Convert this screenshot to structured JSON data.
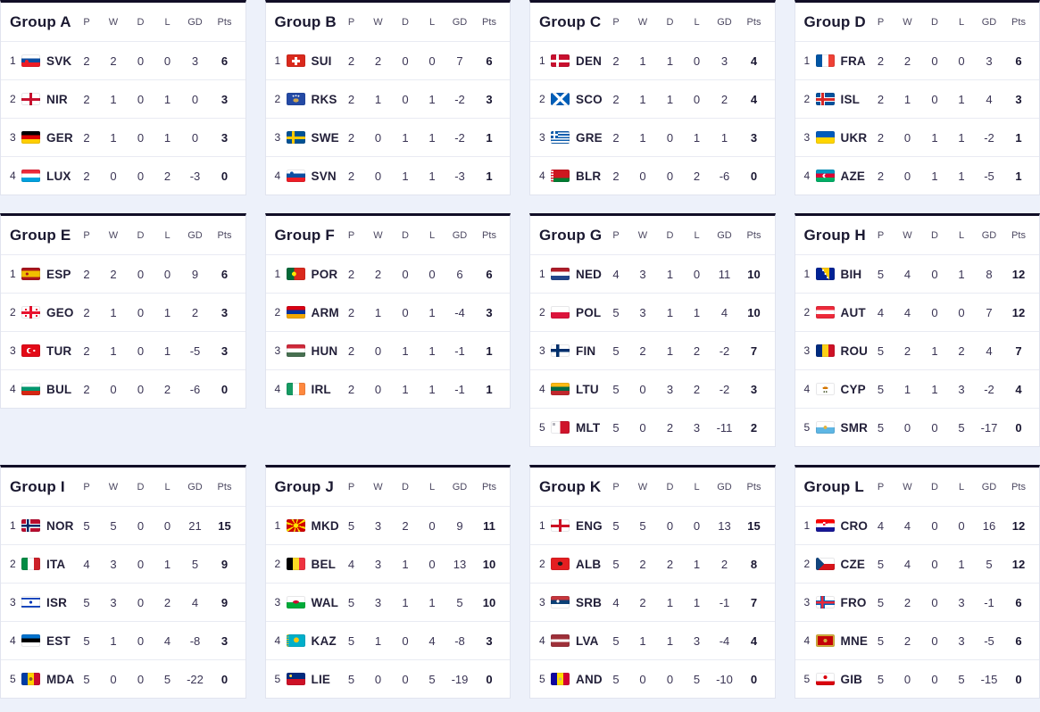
{
  "columns": [
    "P",
    "W",
    "D",
    "L",
    "GD",
    "Pts"
  ],
  "colors": {
    "page_bg": "#edf1fa",
    "card_bg": "#ffffff",
    "card_top_border": "#110e26",
    "card_border": "#e1e4ef",
    "divider": "#e9ebf3",
    "heading_text": "#1a1830",
    "column_header_text": "#4c4861",
    "stat_text": "#3a3454",
    "points_text": "#191631"
  },
  "groups": [
    {
      "title": "Group A",
      "rows": [
        {
          "rank": 1,
          "code": "SVK",
          "flag": "flag-svk-icon",
          "p": 2,
          "w": 2,
          "d": 0,
          "l": 0,
          "gd": 3,
          "pts": 6
        },
        {
          "rank": 2,
          "code": "NIR",
          "flag": "flag-nir-icon",
          "p": 2,
          "w": 1,
          "d": 0,
          "l": 1,
          "gd": 0,
          "pts": 3
        },
        {
          "rank": 3,
          "code": "GER",
          "flag": "flag-ger-icon",
          "p": 2,
          "w": 1,
          "d": 0,
          "l": 1,
          "gd": 0,
          "pts": 3
        },
        {
          "rank": 4,
          "code": "LUX",
          "flag": "flag-lux-icon",
          "p": 2,
          "w": 0,
          "d": 0,
          "l": 2,
          "gd": -3,
          "pts": 0
        }
      ]
    },
    {
      "title": "Group B",
      "rows": [
        {
          "rank": 1,
          "code": "SUI",
          "flag": "flag-sui-icon",
          "p": 2,
          "w": 2,
          "d": 0,
          "l": 0,
          "gd": 7,
          "pts": 6
        },
        {
          "rank": 2,
          "code": "RKS",
          "flag": "flag-rks-icon",
          "p": 2,
          "w": 1,
          "d": 0,
          "l": 1,
          "gd": -2,
          "pts": 3
        },
        {
          "rank": 3,
          "code": "SWE",
          "flag": "flag-swe-icon",
          "p": 2,
          "w": 0,
          "d": 1,
          "l": 1,
          "gd": -2,
          "pts": 1
        },
        {
          "rank": 4,
          "code": "SVN",
          "flag": "flag-svn-icon",
          "p": 2,
          "w": 0,
          "d": 1,
          "l": 1,
          "gd": -3,
          "pts": 1
        }
      ]
    },
    {
      "title": "Group C",
      "rows": [
        {
          "rank": 1,
          "code": "DEN",
          "flag": "flag-den-icon",
          "p": 2,
          "w": 1,
          "d": 1,
          "l": 0,
          "gd": 3,
          "pts": 4
        },
        {
          "rank": 2,
          "code": "SCO",
          "flag": "flag-sco-icon",
          "p": 2,
          "w": 1,
          "d": 1,
          "l": 0,
          "gd": 2,
          "pts": 4
        },
        {
          "rank": 3,
          "code": "GRE",
          "flag": "flag-gre-icon",
          "p": 2,
          "w": 1,
          "d": 0,
          "l": 1,
          "gd": 1,
          "pts": 3
        },
        {
          "rank": 4,
          "code": "BLR",
          "flag": "flag-blr-icon",
          "p": 2,
          "w": 0,
          "d": 0,
          "l": 2,
          "gd": -6,
          "pts": 0
        }
      ]
    },
    {
      "title": "Group D",
      "rows": [
        {
          "rank": 1,
          "code": "FRA",
          "flag": "flag-fra-icon",
          "p": 2,
          "w": 2,
          "d": 0,
          "l": 0,
          "gd": 3,
          "pts": 6
        },
        {
          "rank": 2,
          "code": "ISL",
          "flag": "flag-isl-icon",
          "p": 2,
          "w": 1,
          "d": 0,
          "l": 1,
          "gd": 4,
          "pts": 3
        },
        {
          "rank": 3,
          "code": "UKR",
          "flag": "flag-ukr-icon",
          "p": 2,
          "w": 0,
          "d": 1,
          "l": 1,
          "gd": -2,
          "pts": 1
        },
        {
          "rank": 4,
          "code": "AZE",
          "flag": "flag-aze-icon",
          "p": 2,
          "w": 0,
          "d": 1,
          "l": 1,
          "gd": -5,
          "pts": 1
        }
      ]
    },
    {
      "title": "Group E",
      "rows": [
        {
          "rank": 1,
          "code": "ESP",
          "flag": "flag-esp-icon",
          "p": 2,
          "w": 2,
          "d": 0,
          "l": 0,
          "gd": 9,
          "pts": 6
        },
        {
          "rank": 2,
          "code": "GEO",
          "flag": "flag-geo-icon",
          "p": 2,
          "w": 1,
          "d": 0,
          "l": 1,
          "gd": 2,
          "pts": 3
        },
        {
          "rank": 3,
          "code": "TUR",
          "flag": "flag-tur-icon",
          "p": 2,
          "w": 1,
          "d": 0,
          "l": 1,
          "gd": -5,
          "pts": 3
        },
        {
          "rank": 4,
          "code": "BUL",
          "flag": "flag-bul-icon",
          "p": 2,
          "w": 0,
          "d": 0,
          "l": 2,
          "gd": -6,
          "pts": 0
        }
      ]
    },
    {
      "title": "Group F",
      "rows": [
        {
          "rank": 1,
          "code": "POR",
          "flag": "flag-por-icon",
          "p": 2,
          "w": 2,
          "d": 0,
          "l": 0,
          "gd": 6,
          "pts": 6
        },
        {
          "rank": 2,
          "code": "ARM",
          "flag": "flag-arm-icon",
          "p": 2,
          "w": 1,
          "d": 0,
          "l": 1,
          "gd": -4,
          "pts": 3
        },
        {
          "rank": 3,
          "code": "HUN",
          "flag": "flag-hun-icon",
          "p": 2,
          "w": 0,
          "d": 1,
          "l": 1,
          "gd": -1,
          "pts": 1
        },
        {
          "rank": 4,
          "code": "IRL",
          "flag": "flag-irl-icon",
          "p": 2,
          "w": 0,
          "d": 1,
          "l": 1,
          "gd": -1,
          "pts": 1
        }
      ]
    },
    {
      "title": "Group G",
      "rows": [
        {
          "rank": 1,
          "code": "NED",
          "flag": "flag-ned-icon",
          "p": 4,
          "w": 3,
          "d": 1,
          "l": 0,
          "gd": 11,
          "pts": 10
        },
        {
          "rank": 2,
          "code": "POL",
          "flag": "flag-pol-icon",
          "p": 5,
          "w": 3,
          "d": 1,
          "l": 1,
          "gd": 4,
          "pts": 10
        },
        {
          "rank": 3,
          "code": "FIN",
          "flag": "flag-fin-icon",
          "p": 5,
          "w": 2,
          "d": 1,
          "l": 2,
          "gd": -2,
          "pts": 7
        },
        {
          "rank": 4,
          "code": "LTU",
          "flag": "flag-ltu-icon",
          "p": 5,
          "w": 0,
          "d": 3,
          "l": 2,
          "gd": -2,
          "pts": 3
        },
        {
          "rank": 5,
          "code": "MLT",
          "flag": "flag-mlt-icon",
          "p": 5,
          "w": 0,
          "d": 2,
          "l": 3,
          "gd": -11,
          "pts": 2
        }
      ]
    },
    {
      "title": "Group H",
      "rows": [
        {
          "rank": 1,
          "code": "BIH",
          "flag": "flag-bih-icon",
          "p": 5,
          "w": 4,
          "d": 0,
          "l": 1,
          "gd": 8,
          "pts": 12
        },
        {
          "rank": 2,
          "code": "AUT",
          "flag": "flag-aut-icon",
          "p": 4,
          "w": 4,
          "d": 0,
          "l": 0,
          "gd": 7,
          "pts": 12
        },
        {
          "rank": 3,
          "code": "ROU",
          "flag": "flag-rou-icon",
          "p": 5,
          "w": 2,
          "d": 1,
          "l": 2,
          "gd": 4,
          "pts": 7
        },
        {
          "rank": 4,
          "code": "CYP",
          "flag": "flag-cyp-icon",
          "p": 5,
          "w": 1,
          "d": 1,
          "l": 3,
          "gd": -2,
          "pts": 4
        },
        {
          "rank": 5,
          "code": "SMR",
          "flag": "flag-smr-icon",
          "p": 5,
          "w": 0,
          "d": 0,
          "l": 5,
          "gd": -17,
          "pts": 0
        }
      ]
    },
    {
      "title": "Group I",
      "rows": [
        {
          "rank": 1,
          "code": "NOR",
          "flag": "flag-nor-icon",
          "p": 5,
          "w": 5,
          "d": 0,
          "l": 0,
          "gd": 21,
          "pts": 15
        },
        {
          "rank": 2,
          "code": "ITA",
          "flag": "flag-ita-icon",
          "p": 4,
          "w": 3,
          "d": 0,
          "l": 1,
          "gd": 5,
          "pts": 9
        },
        {
          "rank": 3,
          "code": "ISR",
          "flag": "flag-isr-icon",
          "p": 5,
          "w": 3,
          "d": 0,
          "l": 2,
          "gd": 4,
          "pts": 9
        },
        {
          "rank": 4,
          "code": "EST",
          "flag": "flag-est-icon",
          "p": 5,
          "w": 1,
          "d": 0,
          "l": 4,
          "gd": -8,
          "pts": 3
        },
        {
          "rank": 5,
          "code": "MDA",
          "flag": "flag-mda-icon",
          "p": 5,
          "w": 0,
          "d": 0,
          "l": 5,
          "gd": -22,
          "pts": 0
        }
      ]
    },
    {
      "title": "Group J",
      "rows": [
        {
          "rank": 1,
          "code": "MKD",
          "flag": "flag-mkd-icon",
          "p": 5,
          "w": 3,
          "d": 2,
          "l": 0,
          "gd": 9,
          "pts": 11
        },
        {
          "rank": 2,
          "code": "BEL",
          "flag": "flag-bel-icon",
          "p": 4,
          "w": 3,
          "d": 1,
          "l": 0,
          "gd": 13,
          "pts": 10
        },
        {
          "rank": 3,
          "code": "WAL",
          "flag": "flag-wal-icon",
          "p": 5,
          "w": 3,
          "d": 1,
          "l": 1,
          "gd": 5,
          "pts": 10
        },
        {
          "rank": 4,
          "code": "KAZ",
          "flag": "flag-kaz-icon",
          "p": 5,
          "w": 1,
          "d": 0,
          "l": 4,
          "gd": -8,
          "pts": 3
        },
        {
          "rank": 5,
          "code": "LIE",
          "flag": "flag-lie-icon",
          "p": 5,
          "w": 0,
          "d": 0,
          "l": 5,
          "gd": -19,
          "pts": 0
        }
      ]
    },
    {
      "title": "Group K",
      "rows": [
        {
          "rank": 1,
          "code": "ENG",
          "flag": "flag-eng-icon",
          "p": 5,
          "w": 5,
          "d": 0,
          "l": 0,
          "gd": 13,
          "pts": 15
        },
        {
          "rank": 2,
          "code": "ALB",
          "flag": "flag-alb-icon",
          "p": 5,
          "w": 2,
          "d": 2,
          "l": 1,
          "gd": 2,
          "pts": 8
        },
        {
          "rank": 3,
          "code": "SRB",
          "flag": "flag-srb-icon",
          "p": 4,
          "w": 2,
          "d": 1,
          "l": 1,
          "gd": -1,
          "pts": 7
        },
        {
          "rank": 4,
          "code": "LVA",
          "flag": "flag-lva-icon",
          "p": 5,
          "w": 1,
          "d": 1,
          "l": 3,
          "gd": -4,
          "pts": 4
        },
        {
          "rank": 5,
          "code": "AND",
          "flag": "flag-and-icon",
          "p": 5,
          "w": 0,
          "d": 0,
          "l": 5,
          "gd": -10,
          "pts": 0
        }
      ]
    },
    {
      "title": "Group L",
      "rows": [
        {
          "rank": 1,
          "code": "CRO",
          "flag": "flag-cro-icon",
          "p": 4,
          "w": 4,
          "d": 0,
          "l": 0,
          "gd": 16,
          "pts": 12
        },
        {
          "rank": 2,
          "code": "CZE",
          "flag": "flag-cze-icon",
          "p": 5,
          "w": 4,
          "d": 0,
          "l": 1,
          "gd": 5,
          "pts": 12
        },
        {
          "rank": 3,
          "code": "FRO",
          "flag": "flag-fro-icon",
          "p": 5,
          "w": 2,
          "d": 0,
          "l": 3,
          "gd": -1,
          "pts": 6
        },
        {
          "rank": 4,
          "code": "MNE",
          "flag": "flag-mne-icon",
          "p": 5,
          "w": 2,
          "d": 0,
          "l": 3,
          "gd": -5,
          "pts": 6
        },
        {
          "rank": 5,
          "code": "GIB",
          "flag": "flag-gib-icon",
          "p": 5,
          "w": 0,
          "d": 0,
          "l": 5,
          "gd": -15,
          "pts": 0
        }
      ]
    }
  ]
}
